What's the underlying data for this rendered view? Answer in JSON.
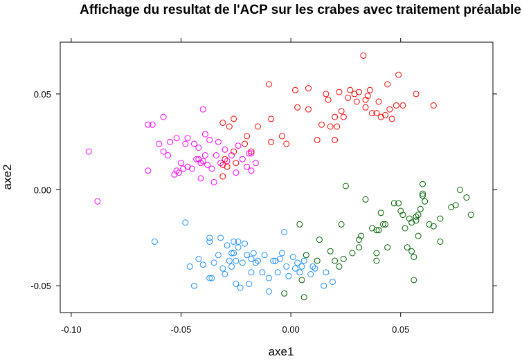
{
  "chart_data": {
    "type": "scatter",
    "title": "Affichage du resultat de l'ACP sur les crabes avec traitement préalable",
    "xlabel": "axe1",
    "ylabel": "axe2",
    "xlim": [
      -0.105,
      0.092
    ],
    "ylim": [
      -0.064,
      0.077
    ],
    "xticks": [
      -0.1,
      -0.05,
      0.0,
      0.05
    ],
    "xtick_labels": [
      "-0.10",
      "-0.05",
      "0.00",
      "0.05"
    ],
    "yticks": [
      -0.05,
      0.0,
      0.05
    ],
    "ytick_labels": [
      "-0.05",
      "0.00",
      "0.05"
    ],
    "grid": false,
    "legend": "none",
    "marker": "open-circle",
    "series": [
      {
        "color": "#FF00FF",
        "points": [
          [
            -0.092,
            0.02
          ],
          [
            -0.088,
            -0.006
          ],
          [
            -0.065,
            0.034
          ],
          [
            -0.063,
            0.034
          ],
          [
            -0.065,
            0.01
          ],
          [
            -0.06,
            0.024
          ],
          [
            -0.058,
            0.038
          ],
          [
            -0.058,
            0.02
          ],
          [
            -0.056,
            0.018
          ],
          [
            -0.055,
            0.025
          ],
          [
            -0.053,
            0.008
          ],
          [
            -0.052,
            0.01
          ],
          [
            -0.052,
            0.027
          ],
          [
            -0.051,
            0.009
          ],
          [
            -0.05,
            0.014
          ],
          [
            -0.049,
            0.011
          ],
          [
            -0.048,
            0.024
          ],
          [
            -0.047,
            0.012
          ],
          [
            -0.047,
            0.027
          ],
          [
            -0.045,
            0.011
          ],
          [
            -0.044,
            0.024
          ],
          [
            -0.043,
            0.016
          ],
          [
            -0.042,
            0.016
          ],
          [
            -0.042,
            0.022
          ],
          [
            -0.041,
            0.014
          ],
          [
            -0.041,
            0.006
          ],
          [
            -0.04,
            0.042
          ],
          [
            -0.04,
            0.015
          ],
          [
            -0.039,
            0.029
          ],
          [
            -0.039,
            0.018
          ],
          [
            -0.038,
            0.013
          ],
          [
            -0.037,
            0.026
          ],
          [
            -0.036,
            0.011
          ],
          [
            -0.035,
            0.004
          ],
          [
            -0.034,
            0.018
          ],
          [
            -0.033,
            0.025
          ],
          [
            -0.032,
            0.014
          ],
          [
            -0.03,
            0.021
          ],
          [
            -0.029,
            0.015
          ],
          [
            -0.027,
            0.018
          ],
          [
            -0.025,
            0.009
          ],
          [
            -0.024,
            0.023
          ],
          [
            -0.022,
            0.016
          ],
          [
            -0.02,
            0.012
          ],
          [
            -0.019,
            0.019
          ],
          [
            -0.018,
            0.01
          ],
          [
            -0.018,
            0.019
          ],
          [
            -0.016,
            0.014
          ]
        ]
      },
      {
        "color": "#FF0000",
        "points": [
          [
            -0.031,
            0.013
          ],
          [
            -0.031,
            0.007
          ],
          [
            -0.031,
            0.035
          ],
          [
            -0.03,
            0.016
          ],
          [
            -0.029,
            0.012
          ],
          [
            -0.028,
            0.033
          ],
          [
            -0.026,
            0.037
          ],
          [
            -0.026,
            0.02
          ],
          [
            -0.025,
            0.014
          ],
          [
            -0.021,
            0.024
          ],
          [
            -0.02,
            0.028
          ],
          [
            -0.018,
            0.02
          ],
          [
            -0.015,
            0.033
          ],
          [
            -0.01,
            0.055
          ],
          [
            -0.009,
            0.025
          ],
          [
            -0.009,
            0.037
          ],
          [
            -0.004,
            0.028
          ],
          [
            -0.002,
            0.024
          ],
          [
            0.002,
            0.052
          ],
          [
            0.003,
            0.043
          ],
          [
            0.008,
            0.053
          ],
          [
            0.008,
            0.042
          ],
          [
            0.012,
            0.026
          ],
          [
            0.014,
            0.034
          ],
          [
            0.016,
            0.05
          ],
          [
            0.017,
            0.047
          ],
          [
            0.018,
            0.033
          ],
          [
            0.02,
            0.026
          ],
          [
            0.02,
            0.038
          ],
          [
            0.021,
            0.033
          ],
          [
            0.022,
            0.051
          ],
          [
            0.023,
            0.041
          ],
          [
            0.024,
            0.038
          ],
          [
            0.026,
            0.048
          ],
          [
            0.027,
            0.052
          ],
          [
            0.029,
            0.05
          ],
          [
            0.03,
            0.046
          ],
          [
            0.031,
            0.051
          ],
          [
            0.033,
            0.07
          ],
          [
            0.034,
            0.047
          ],
          [
            0.034,
            0.043
          ],
          [
            0.035,
            0.049
          ],
          [
            0.036,
            0.052
          ],
          [
            0.037,
            0.04
          ],
          [
            0.039,
            0.04
          ],
          [
            0.04,
            0.046
          ],
          [
            0.041,
            0.038
          ],
          [
            0.043,
            0.039
          ],
          [
            0.044,
            0.055
          ],
          [
            0.045,
            0.042
          ],
          [
            0.046,
            0.037
          ],
          [
            0.048,
            0.044
          ],
          [
            0.049,
            0.06
          ],
          [
            0.051,
            0.044
          ],
          [
            0.057,
            0.05
          ],
          [
            0.065,
            0.044
          ]
        ]
      },
      {
        "color": "#1E90FF",
        "points": [
          [
            -0.062,
            -0.027
          ],
          [
            -0.048,
            -0.017
          ],
          [
            -0.046,
            -0.04
          ],
          [
            -0.044,
            -0.05
          ],
          [
            -0.042,
            -0.036
          ],
          [
            -0.04,
            -0.039
          ],
          [
            -0.037,
            -0.046
          ],
          [
            -0.037,
            -0.025
          ],
          [
            -0.037,
            -0.027
          ],
          [
            -0.036,
            -0.046
          ],
          [
            -0.035,
            -0.038
          ],
          [
            -0.033,
            -0.034
          ],
          [
            -0.032,
            -0.025
          ],
          [
            -0.031,
            -0.041
          ],
          [
            -0.03,
            -0.044
          ],
          [
            -0.029,
            -0.029
          ],
          [
            -0.028,
            -0.037
          ],
          [
            -0.027,
            -0.033
          ],
          [
            -0.027,
            -0.04
          ],
          [
            -0.026,
            -0.027
          ],
          [
            -0.026,
            -0.033
          ],
          [
            -0.025,
            -0.049
          ],
          [
            -0.025,
            -0.037
          ],
          [
            -0.024,
            -0.03
          ],
          [
            -0.024,
            -0.027
          ],
          [
            -0.023,
            -0.051
          ],
          [
            -0.022,
            -0.038
          ],
          [
            -0.021,
            -0.028
          ],
          [
            -0.02,
            -0.034
          ],
          [
            -0.019,
            -0.049
          ],
          [
            -0.018,
            -0.036
          ],
          [
            -0.018,
            -0.043
          ],
          [
            -0.017,
            -0.033
          ],
          [
            -0.016,
            -0.038
          ],
          [
            -0.015,
            -0.037
          ],
          [
            -0.013,
            -0.043
          ],
          [
            -0.012,
            -0.034
          ],
          [
            -0.01,
            -0.053
          ],
          [
            -0.01,
            -0.046
          ],
          [
            -0.008,
            -0.037
          ],
          [
            -0.007,
            -0.037
          ],
          [
            -0.006,
            -0.043
          ],
          [
            -0.005,
            -0.036
          ],
          [
            -0.004,
            -0.033
          ],
          [
            -0.003,
            -0.022
          ],
          [
            -0.002,
            -0.04
          ],
          [
            -0.001,
            -0.045
          ],
          [
            0.001,
            -0.035
          ],
          [
            0.002,
            -0.041
          ],
          [
            0.003,
            -0.038
          ],
          [
            0.004,
            -0.043
          ],
          [
            0.005,
            -0.04
          ],
          [
            0.006,
            -0.037
          ],
          [
            0.009,
            -0.044
          ],
          [
            0.01,
            -0.04
          ],
          [
            0.011,
            -0.041
          ],
          [
            0.015,
            -0.05
          ],
          [
            0.016,
            -0.043
          ],
          [
            0.019,
            -0.048
          ]
        ]
      },
      {
        "color": "#006400",
        "points": [
          [
            -0.003,
            -0.054
          ],
          [
            0.004,
            -0.018
          ],
          [
            0.005,
            -0.047
          ],
          [
            0.006,
            -0.056
          ],
          [
            0.007,
            -0.034
          ],
          [
            0.012,
            -0.037
          ],
          [
            0.013,
            -0.026
          ],
          [
            0.018,
            -0.032
          ],
          [
            0.02,
            -0.037
          ],
          [
            0.022,
            -0.04
          ],
          [
            0.023,
            -0.018
          ],
          [
            0.024,
            -0.036
          ],
          [
            0.025,
            0.002
          ],
          [
            0.028,
            -0.033
          ],
          [
            0.031,
            -0.026
          ],
          [
            0.031,
            -0.03
          ],
          [
            0.032,
            -0.024
          ],
          [
            0.034,
            -0.005
          ],
          [
            0.037,
            -0.02
          ],
          [
            0.039,
            -0.021
          ],
          [
            0.039,
            -0.033
          ],
          [
            0.039,
            -0.037
          ],
          [
            0.04,
            -0.021
          ],
          [
            0.041,
            -0.012
          ],
          [
            0.042,
            -0.018
          ],
          [
            0.043,
            -0.018
          ],
          [
            0.044,
            -0.03
          ],
          [
            0.047,
            -0.007
          ],
          [
            0.049,
            -0.007
          ],
          [
            0.05,
            -0.011
          ],
          [
            0.051,
            -0.013
          ],
          [
            0.052,
            -0.02
          ],
          [
            0.053,
            -0.03
          ],
          [
            0.054,
            -0.015
          ],
          [
            0.055,
            -0.032
          ],
          [
            0.055,
            -0.017
          ],
          [
            0.056,
            -0.047
          ],
          [
            0.056,
            -0.035
          ],
          [
            0.057,
            -0.016
          ],
          [
            0.057,
            -0.014
          ],
          [
            0.058,
            -0.013
          ],
          [
            0.058,
            -0.024
          ],
          [
            0.059,
            -0.01
          ],
          [
            0.06,
            -0.003
          ],
          [
            0.06,
            -0.002
          ],
          [
            0.06,
            0.003
          ],
          [
            0.061,
            -0.006
          ],
          [
            0.063,
            -0.018
          ],
          [
            0.065,
            -0.019
          ],
          [
            0.068,
            -0.027
          ],
          [
            0.068,
            -0.015
          ],
          [
            0.073,
            -0.009
          ],
          [
            0.075,
            -0.008
          ],
          [
            0.077,
            0.0
          ],
          [
            0.08,
            -0.004
          ],
          [
            0.082,
            -0.013
          ]
        ]
      }
    ]
  }
}
